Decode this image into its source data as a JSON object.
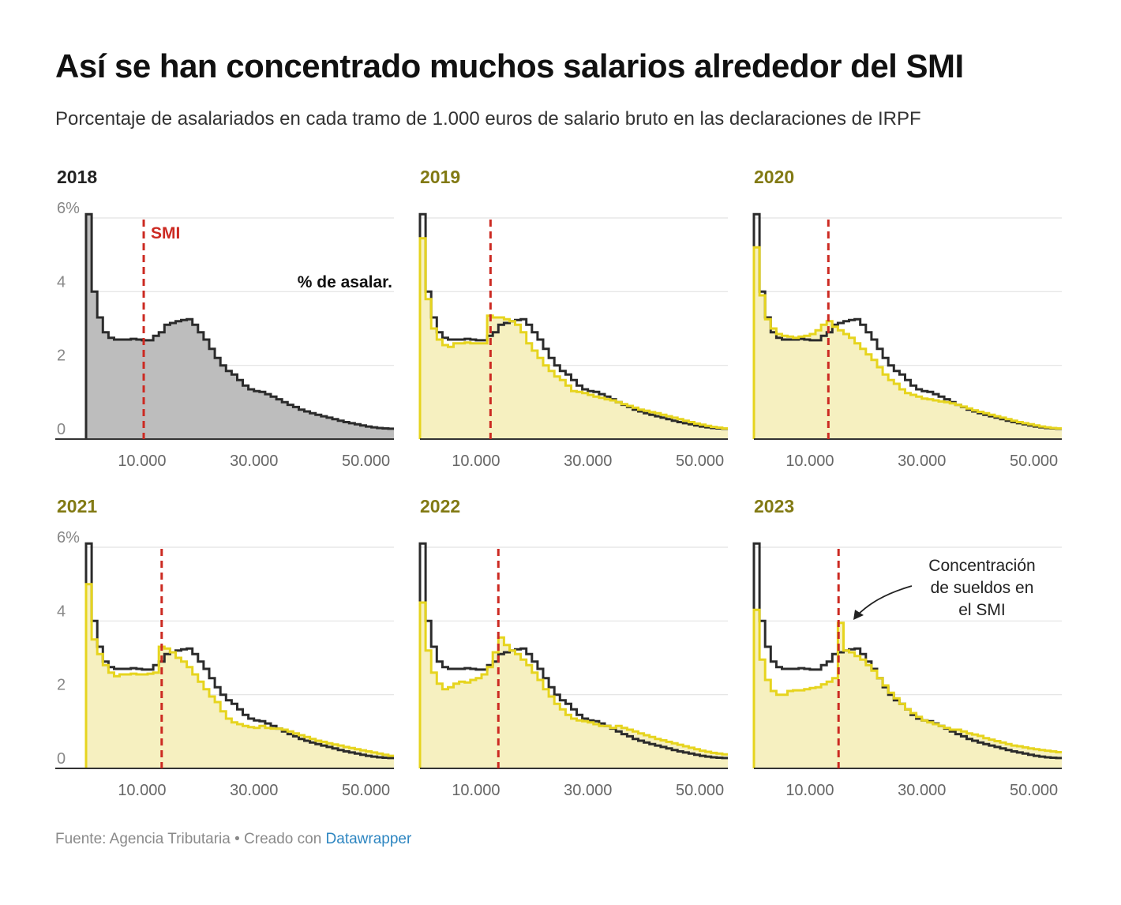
{
  "title": "Así se han concentrado muchos salarios alrededor del SMI",
  "subtitle": "Porcentaje de asalariados en cada tramo de 1.000 euros de salario bruto en las declaraciones de IRPF",
  "footer": {
    "source": "Fuente: Agencia Tributaria",
    "separator": " • ",
    "created": "Creado con ",
    "tool": "Datawrapper"
  },
  "colors": {
    "baseline": "#2b2b2b",
    "baseline_fill": "#bdbdbd",
    "year_line": "#e6d41e",
    "year_fill": "#f6f0c0",
    "smi": "#cc2a22",
    "year_label_first": "#222222",
    "year_label": "#827a14"
  },
  "chart_data": {
    "type": "step-area",
    "ylabel_top": "6%",
    "y_ticks": [
      0,
      2,
      4,
      6
    ],
    "ylim": [
      0,
      6
    ],
    "xlim": [
      0,
      55000
    ],
    "x_ticks": [
      10000,
      30000,
      50000
    ],
    "x_tick_labels": [
      "10.000",
      "30.000",
      "50.000"
    ],
    "bin_size": 1000,
    "smi_label": "SMI",
    "series_label": "% de asalar.",
    "annotation": "Concentración\nde sueldos en\nel SMI",
    "baseline_year": "2018",
    "baseline": [
      6.1,
      4.0,
      3.3,
      2.9,
      2.75,
      2.7,
      2.7,
      2.7,
      2.72,
      2.7,
      2.68,
      2.68,
      2.8,
      2.9,
      3.1,
      3.15,
      3.2,
      3.23,
      3.25,
      3.1,
      2.9,
      2.7,
      2.45,
      2.2,
      2.0,
      1.85,
      1.75,
      1.6,
      1.45,
      1.35,
      1.3,
      1.28,
      1.22,
      1.15,
      1.08,
      1.0,
      0.93,
      0.87,
      0.8,
      0.75,
      0.7,
      0.66,
      0.62,
      0.58,
      0.54,
      0.5,
      0.46,
      0.43,
      0.4,
      0.37,
      0.34,
      0.32,
      0.3,
      0.29,
      0.28
    ],
    "panels": [
      {
        "year": "2018",
        "smi": 10300,
        "values": []
      },
      {
        "year": "2019",
        "smi": 12600,
        "values": [
          5.45,
          3.8,
          3.0,
          2.7,
          2.55,
          2.5,
          2.6,
          2.6,
          2.62,
          2.6,
          2.6,
          2.6,
          3.35,
          3.3,
          3.3,
          3.25,
          3.2,
          3.1,
          2.9,
          2.6,
          2.4,
          2.2,
          2.0,
          1.85,
          1.7,
          1.6,
          1.45,
          1.3,
          1.28,
          1.25,
          1.2,
          1.15,
          1.12,
          1.08,
          1.05,
          1.0,
          0.95,
          0.9,
          0.85,
          0.8,
          0.77,
          0.73,
          0.7,
          0.66,
          0.62,
          0.58,
          0.54,
          0.5,
          0.46,
          0.42,
          0.39,
          0.36,
          0.33,
          0.31,
          0.29
        ]
      },
      {
        "year": "2020",
        "smi": 13300,
        "values": [
          5.2,
          3.9,
          3.25,
          3.0,
          2.85,
          2.8,
          2.78,
          2.75,
          2.78,
          2.8,
          2.85,
          2.95,
          3.1,
          3.2,
          3.05,
          2.95,
          2.85,
          2.75,
          2.6,
          2.45,
          2.3,
          2.15,
          1.95,
          1.75,
          1.6,
          1.5,
          1.35,
          1.25,
          1.2,
          1.15,
          1.1,
          1.08,
          1.05,
          1.02,
          1.0,
          0.97,
          0.93,
          0.88,
          0.83,
          0.78,
          0.74,
          0.7,
          0.66,
          0.62,
          0.58,
          0.54,
          0.5,
          0.46,
          0.43,
          0.4,
          0.37,
          0.34,
          0.32,
          0.3,
          0.29
        ]
      },
      {
        "year": "2021",
        "smi": 13510,
        "values": [
          5.0,
          3.5,
          3.1,
          2.8,
          2.6,
          2.5,
          2.55,
          2.55,
          2.57,
          2.55,
          2.55,
          2.57,
          2.6,
          3.3,
          3.25,
          3.15,
          3.0,
          2.9,
          2.75,
          2.55,
          2.35,
          2.15,
          1.95,
          1.8,
          1.55,
          1.35,
          1.25,
          1.2,
          1.15,
          1.12,
          1.1,
          1.15,
          1.1,
          1.08,
          1.08,
          1.05,
          1.0,
          0.95,
          0.9,
          0.85,
          0.8,
          0.75,
          0.72,
          0.68,
          0.65,
          0.62,
          0.58,
          0.55,
          0.52,
          0.49,
          0.46,
          0.43,
          0.4,
          0.37,
          0.34
        ]
      },
      {
        "year": "2022",
        "smi": 14000,
        "values": [
          4.5,
          3.2,
          2.6,
          2.3,
          2.15,
          2.2,
          2.3,
          2.35,
          2.33,
          2.4,
          2.45,
          2.55,
          2.75,
          3.15,
          3.55,
          3.35,
          3.2,
          3.1,
          2.95,
          2.8,
          2.6,
          2.4,
          2.15,
          1.95,
          1.75,
          1.6,
          1.45,
          1.35,
          1.3,
          1.28,
          1.25,
          1.2,
          1.15,
          1.15,
          1.1,
          1.15,
          1.1,
          1.05,
          1.0,
          0.95,
          0.9,
          0.85,
          0.8,
          0.76,
          0.72,
          0.68,
          0.64,
          0.6,
          0.56,
          0.52,
          0.48,
          0.45,
          0.42,
          0.4,
          0.38
        ]
      },
      {
        "year": "2023",
        "smi": 15120,
        "values": [
          4.3,
          2.95,
          2.4,
          2.1,
          2.0,
          2.0,
          2.1,
          2.12,
          2.12,
          2.15,
          2.18,
          2.2,
          2.28,
          2.35,
          2.45,
          3.95,
          3.2,
          3.15,
          3.05,
          2.95,
          2.8,
          2.65,
          2.45,
          2.25,
          2.05,
          1.9,
          1.75,
          1.6,
          1.5,
          1.4,
          1.3,
          1.25,
          1.2,
          1.15,
          1.1,
          1.05,
          1.05,
          1.0,
          0.95,
          0.92,
          0.88,
          0.82,
          0.78,
          0.74,
          0.7,
          0.66,
          0.62,
          0.6,
          0.57,
          0.54,
          0.52,
          0.5,
          0.48,
          0.46,
          0.44
        ]
      }
    ]
  }
}
